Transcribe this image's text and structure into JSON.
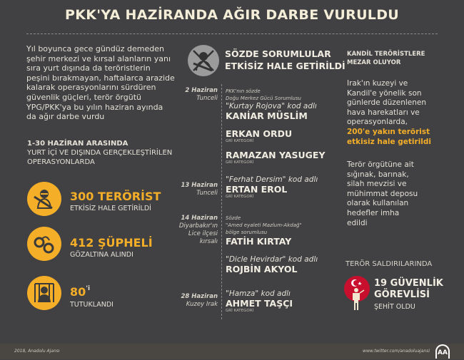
{
  "title": "PKK'YA HAZİRANDA AĞIR DARBE VURULDU",
  "intro": [
    "Yıl boyunca gece gündüz demeden",
    "şehir merkezi ve kırsal alanların yanı",
    "sıra yurt dışında da teröristlerin",
    "peşini bırakmayan, haftalarca arazide",
    "kalarak operasyonlarını sürdüren",
    "güvenlik güçleri, terör örgütü",
    "YPG/PKK'ya bu yılın haziran ayında",
    "da ağır darbe vurdu"
  ],
  "period": {
    "bold": "1-30 HAZİRAN ARASINDA",
    "line2": "YURT İÇİ VE DIŞINDA GERÇEKLEŞTİRİLEN",
    "line3": "OPERASYONLARDA"
  },
  "stats": [
    {
      "icon": "masked-terrorist-icon",
      "big": "300 TERÖRİST",
      "small": "ETKİSİZ HALE GETİRİLDİ"
    },
    {
      "icon": "handcuffs-icon",
      "big": "412 ŞÜPHELİ",
      "small": "GÖZALTINA ALINDI"
    },
    {
      "icon": "prison-icon",
      "big": "80",
      "suffix": "'i",
      "small": "TUTUKLANDI"
    }
  ],
  "middle": {
    "title1": "SÖZDE SORUMLULAR",
    "title2": "ETKİSİZ HALE GETİRİLDİ",
    "icon": "crossed-terrorist-icon"
  },
  "dates": [
    {
      "d": "2 Haziran",
      "p": [
        "Tunceli"
      ]
    },
    {
      "d": "13 Haziran",
      "p": [
        "Tunceli"
      ]
    },
    {
      "d": "14 Haziran",
      "p": [
        "Diyarbakır'ın",
        "Lice ilçesi",
        "kırsalı"
      ]
    },
    {
      "d": "28 Haziran",
      "p": [
        "Kuzey Irak"
      ]
    }
  ],
  "entries": {
    "e1": {
      "n1": "PKK'nın sözde",
      "n2": "Doğu Merkez Gücü Sorumlusu",
      "kod": "\"Kurtay Rojova\" kod adlı",
      "name": "KANİAR MÜSLİM"
    },
    "e2": {
      "name": "ERKAN ORDU",
      "cat": "GRİ KATEGORİ"
    },
    "e3": {
      "name": "RAMAZAN YASUGEY",
      "cat": "GRİ KATEGORİ"
    },
    "e4": {
      "kod": "\"Ferhat Dersim\" kod adlı",
      "name": "ERTAN EROL",
      "cat": "GRİ KATEGORİ"
    },
    "e5": {
      "n1": "Sözde",
      "n2": "\"Amed eyaleti Mazlum-Akdağ\"",
      "n3": "bölge sorumlusu",
      "name": "FATİH KIRTAY"
    },
    "e6": {
      "kod": "\"Dicle Hevirdar\" kod adlı",
      "name": "ROJBİN AKYOL"
    },
    "e7": {
      "kod": "\"Hamza\" kod adlı",
      "name": "AHMET TAŞÇI",
      "cat": "GRİ KATEGORİ"
    }
  },
  "right": {
    "head1": "KANDİL TERÖRİSTLERE",
    "head2": "MEZAR OLUYOR",
    "p1": [
      "Irak'ın kuzeyi ve",
      "Kandil'e yönelik son",
      "günlerde düzenlenen",
      "hava harekatları ve",
      "operasyonlarda,"
    ],
    "p1hl": [
      "200'e yakın terörist",
      "etkisiz hale getirildi"
    ],
    "p2": [
      "Terör örgütüne ait",
      "sığınak, barınak,",
      "silah mevzisi ve",
      "mühimmat deposu",
      "olarak kullanılan",
      "hedefler imha",
      "edildi"
    ],
    "attacks": "TERÖR SALDIRILARINDA",
    "big1": "19 GÜVENLİK",
    "big2": "GÖREVLİSİ",
    "small": "ŞEHİT OLDU",
    "icon": "turkish-soldier-icon"
  },
  "footer": {
    "copyright": "2018, Anadolu Ajansı",
    "url": "www.twitter.com/anadoluajansi",
    "logo": "AA"
  },
  "colors": {
    "background": "#414143",
    "accent": "#f4ae28",
    "red": "#c8102e",
    "footer": "#4a4641"
  }
}
